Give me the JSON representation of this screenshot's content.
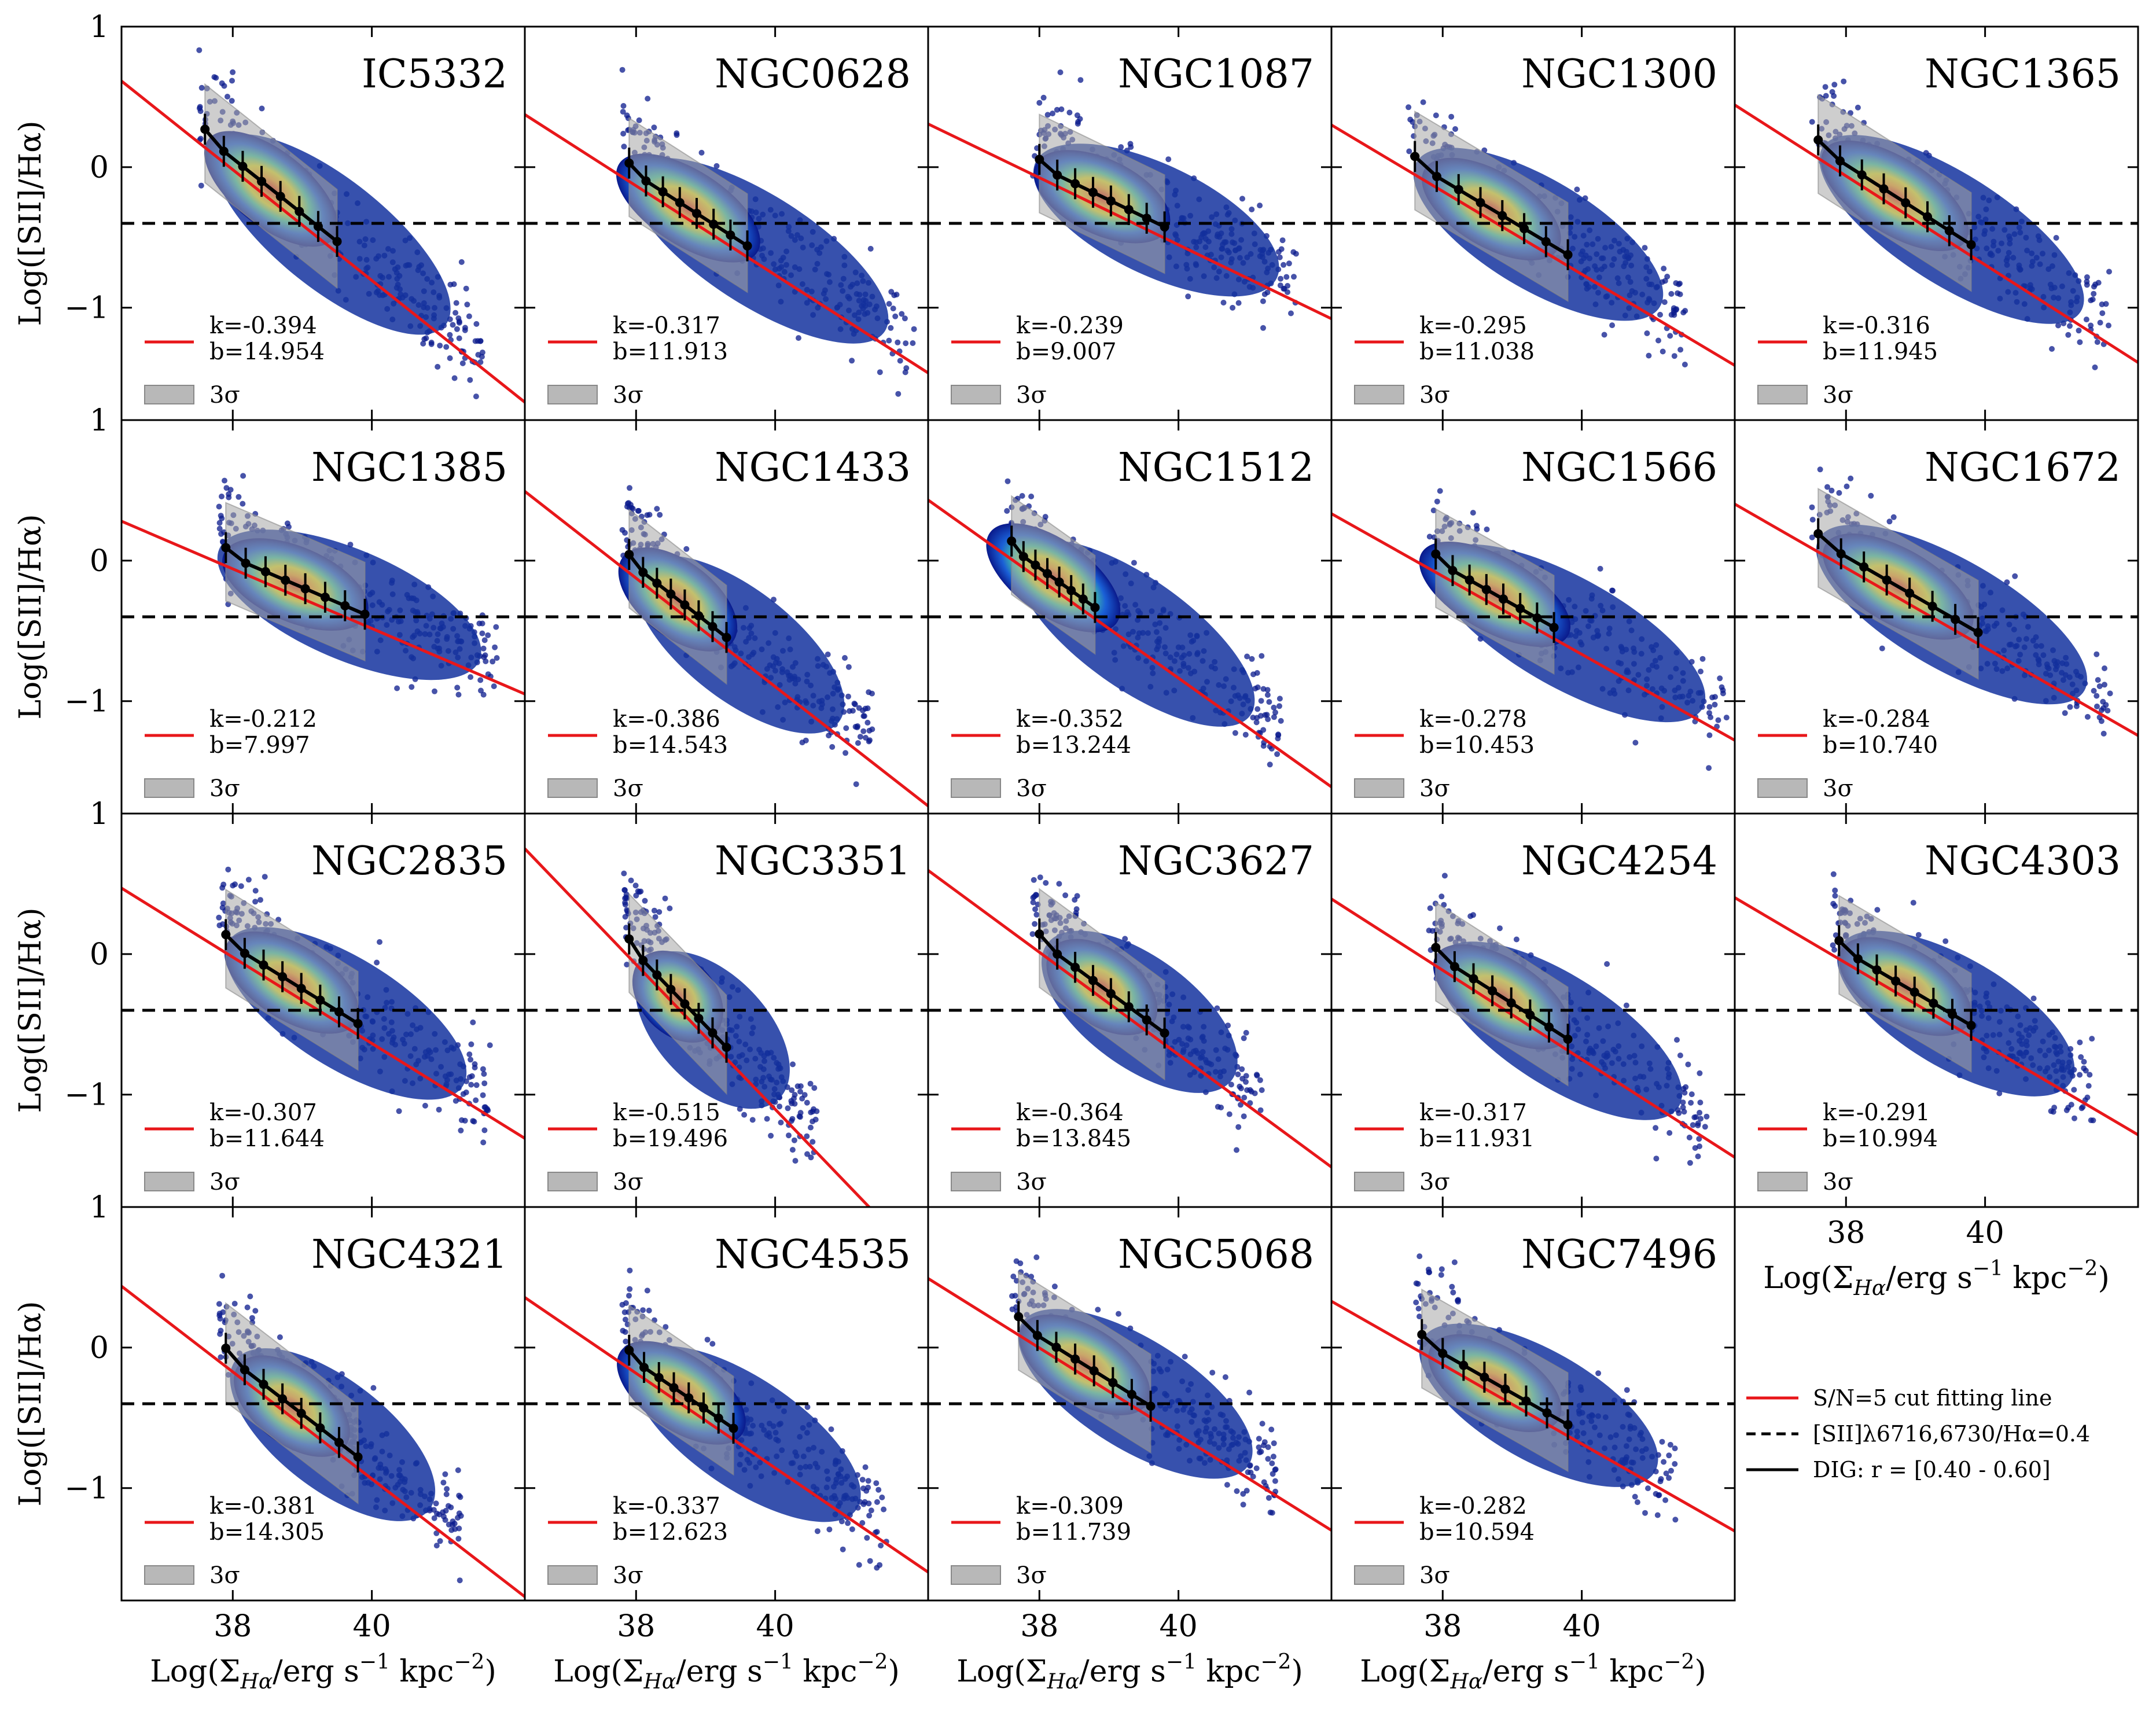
{
  "figure": {
    "ylabel": "Log([SII]/Hα)",
    "xlabel": "Log(Σ",
    "xlabel_sub": "Hα",
    "xlabel_tail": "/erg s",
    "xlabel_sup": "−1",
    "xlabel_end": " kpc",
    "xlabel_sup2": "−2",
    "xlabel_close": ")",
    "dashed_level": -0.4,
    "shade_label": "3σ",
    "k_prefix": "k=",
    "b_prefix": "b=",
    "legend": {
      "fit": "S/N=5 cut fitting line",
      "dashed": "[SII]λ6716,6730/Hα=0.4",
      "dig": "DIG: r = [0.40 - 0.60]"
    },
    "colors": {
      "fit": "#e8171a",
      "dig": "#000000",
      "shade": "#a6a6a6",
      "scatter_low": "#0a1a8c",
      "scatter_high": "#d7261e"
    },
    "x_ticks": [
      "38",
      "40"
    ],
    "y_ticks": [
      "1",
      "0",
      "−1"
    ]
  },
  "chart_data": [
    {
      "type": "scatter",
      "title": "IC5332",
      "k": "-0.394",
      "b": "14.954",
      "xlim": [
        36.4,
        42.2
      ],
      "ylim": [
        -1.8,
        1
      ],
      "dig_x": [
        37.6,
        41.4
      ],
      "box_x": [
        37.6,
        39.5
      ]
    },
    {
      "type": "scatter",
      "title": "NGC0628",
      "k": "-0.317",
      "b": "11.913",
      "xlim": [
        36.4,
        42.2
      ],
      "ylim": [
        -1.8,
        1
      ],
      "dig_x": [
        37.9,
        41.8
      ],
      "box_x": [
        37.9,
        39.6
      ]
    },
    {
      "type": "scatter",
      "title": "NGC1087",
      "k": "-0.239",
      "b": "9.007",
      "xlim": [
        36.4,
        42.2
      ],
      "ylim": [
        -1.8,
        1
      ],
      "dig_x": [
        38.0,
        41.5
      ],
      "box_x": [
        38.0,
        39.8
      ]
    },
    {
      "type": "scatter",
      "title": "NGC1300",
      "k": "-0.295",
      "b": "11.038",
      "xlim": [
        36.4,
        42.2
      ],
      "ylim": [
        -1.8,
        1
      ],
      "dig_x": [
        37.6,
        41.3
      ],
      "box_x": [
        37.6,
        39.8
      ]
    },
    {
      "type": "scatter",
      "title": "NGC1365",
      "k": "-0.316",
      "b": "11.945",
      "xlim": [
        36.4,
        42.2
      ],
      "ylim": [
        -1.8,
        1
      ],
      "dig_x": [
        37.6,
        41.6
      ],
      "box_x": [
        37.6,
        39.8
      ]
    },
    {
      "type": "scatter",
      "title": "NGC1385",
      "k": "-0.212",
      "b": "7.997",
      "xlim": [
        36.4,
        42.2
      ],
      "ylim": [
        -1.8,
        1
      ],
      "dig_x": [
        37.9,
        41.6
      ],
      "box_x": [
        37.9,
        39.9
      ]
    },
    {
      "type": "scatter",
      "title": "NGC1433",
      "k": "-0.386",
      "b": "14.543",
      "xlim": [
        36.4,
        42.2
      ],
      "ylim": [
        -1.8,
        1
      ],
      "dig_x": [
        37.9,
        41.2
      ],
      "box_x": [
        37.9,
        39.3
      ]
    },
    {
      "type": "scatter",
      "title": "NGC1512",
      "k": "-0.352",
      "b": "13.244",
      "xlim": [
        36.4,
        42.2
      ],
      "ylim": [
        -1.8,
        1
      ],
      "dig_x": [
        37.6,
        41.3
      ],
      "box_x": [
        37.6,
        38.8
      ]
    },
    {
      "type": "scatter",
      "title": "NGC1566",
      "k": "-0.278",
      "b": "10.453",
      "xlim": [
        36.4,
        42.2
      ],
      "ylim": [
        -1.8,
        1
      ],
      "dig_x": [
        37.9,
        41.9
      ],
      "box_x": [
        37.9,
        39.6
      ]
    },
    {
      "type": "scatter",
      "title": "NGC1672",
      "k": "-0.284",
      "b": "10.740",
      "xlim": [
        36.4,
        42.2
      ],
      "ylim": [
        -1.8,
        1
      ],
      "dig_x": [
        37.6,
        41.6
      ],
      "box_x": [
        37.6,
        39.9
      ]
    },
    {
      "type": "scatter",
      "title": "NGC2835",
      "k": "-0.307",
      "b": "11.644",
      "xlim": [
        36.4,
        42.2
      ],
      "ylim": [
        -1.8,
        1
      ],
      "dig_x": [
        37.9,
        41.5
      ],
      "box_x": [
        37.9,
        39.8
      ]
    },
    {
      "type": "scatter",
      "title": "NGC3351",
      "k": "-0.515",
      "b": "19.496",
      "xlim": [
        36.4,
        42.2
      ],
      "ylim": [
        -1.8,
        1
      ],
      "dig_x": [
        37.9,
        40.4
      ],
      "box_x": [
        37.9,
        39.3
      ]
    },
    {
      "type": "scatter",
      "title": "NGC3627",
      "k": "-0.364",
      "b": "13.845",
      "xlim": [
        36.4,
        42.2
      ],
      "ylim": [
        -1.8,
        1
      ],
      "dig_x": [
        38.0,
        41.0
      ],
      "box_x": [
        38.0,
        39.8
      ]
    },
    {
      "type": "scatter",
      "title": "NGC4254",
      "k": "-0.317",
      "b": "11.931",
      "xlim": [
        36.4,
        42.2
      ],
      "ylim": [
        -1.8,
        1
      ],
      "dig_x": [
        37.9,
        41.6
      ],
      "box_x": [
        37.9,
        39.8
      ]
    },
    {
      "type": "scatter",
      "title": "NGC4303",
      "k": "-0.291",
      "b": "10.994",
      "xlim": [
        36.4,
        42.2
      ],
      "ylim": [
        -1.8,
        1
      ],
      "dig_x": [
        37.9,
        41.4
      ],
      "box_x": [
        37.9,
        39.8
      ]
    },
    {
      "type": "scatter",
      "title": "NGC4321",
      "k": "-0.381",
      "b": "14.305",
      "xlim": [
        36.4,
        42.2
      ],
      "ylim": [
        -1.8,
        1
      ],
      "dig_x": [
        37.9,
        41.1
      ],
      "box_x": [
        37.9,
        39.8
      ]
    },
    {
      "type": "scatter",
      "title": "NGC4535",
      "k": "-0.337",
      "b": "12.623",
      "xlim": [
        36.4,
        42.2
      ],
      "ylim": [
        -1.8,
        1
      ],
      "dig_x": [
        37.9,
        41.4
      ],
      "box_x": [
        37.9,
        39.4
      ]
    },
    {
      "type": "scatter",
      "title": "NGC5068",
      "k": "-0.309",
      "b": "11.739",
      "xlim": [
        36.4,
        42.2
      ],
      "ylim": [
        -1.8,
        1
      ],
      "dig_x": [
        37.7,
        41.2
      ],
      "box_x": [
        37.7,
        39.6
      ]
    },
    {
      "type": "scatter",
      "title": "NGC7496",
      "k": "-0.282",
      "b": "10.594",
      "xlim": [
        36.4,
        42.2
      ],
      "ylim": [
        -1.8,
        1
      ],
      "dig_x": [
        37.7,
        41.2
      ],
      "box_x": [
        37.7,
        39.8
      ]
    }
  ]
}
